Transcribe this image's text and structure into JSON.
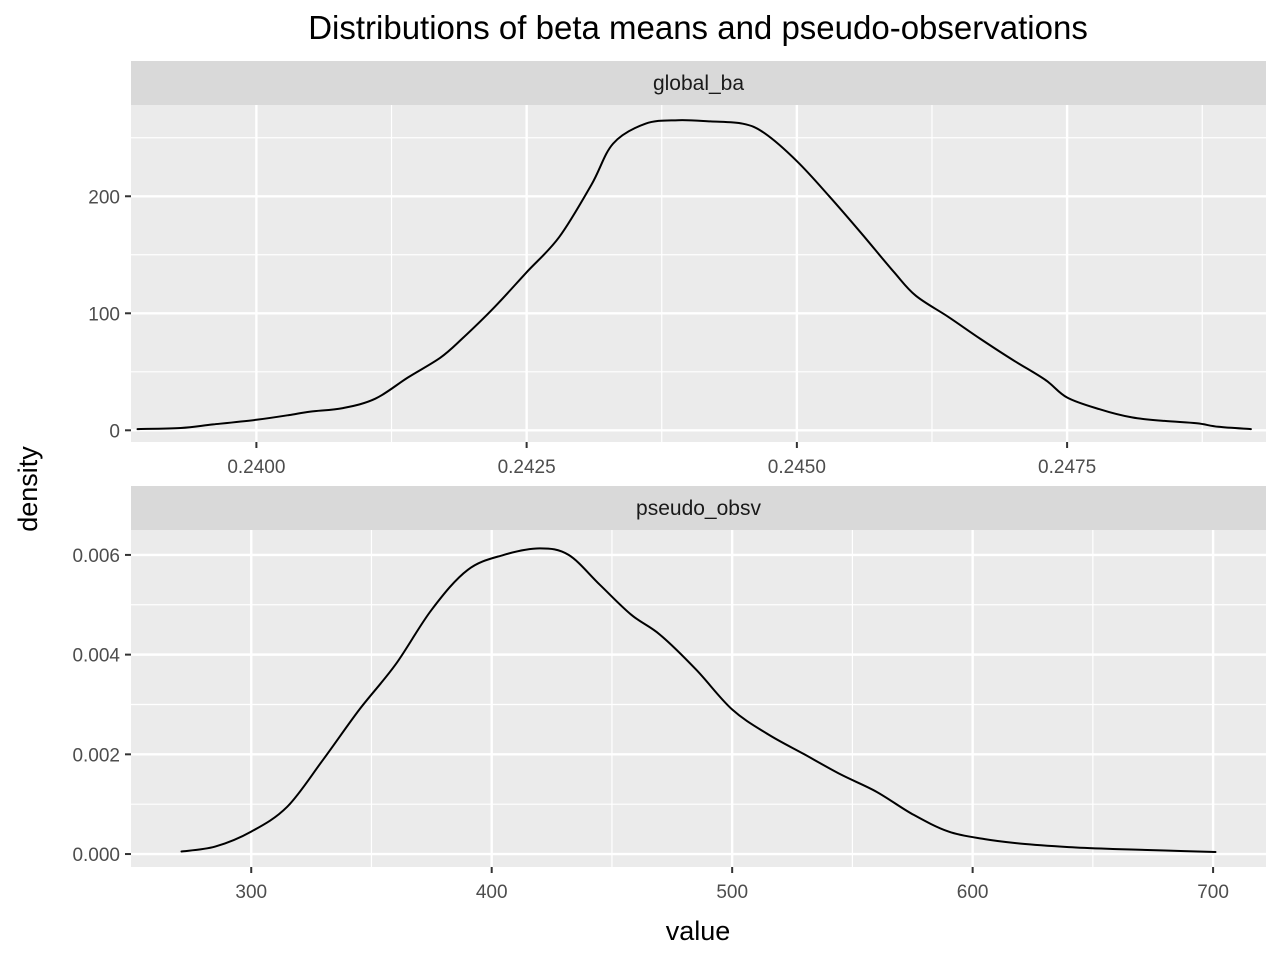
{
  "chart_data": {
    "type": "line",
    "title": "Distributions of beta means and pseudo-observations",
    "xlabel": "value",
    "ylabel": "density",
    "grid": true,
    "legend": "none",
    "facets": [
      {
        "strip_label": "global_ba",
        "xlim": [
          0.23884,
          0.24934
        ],
        "ylim": [
          -10,
          278
        ],
        "x_ticks": [
          0.24,
          0.2425,
          0.245,
          0.2475
        ],
        "x_tick_labels": [
          "0.2400",
          "0.2425",
          "0.2450",
          "0.2475"
        ],
        "y_ticks": [
          0,
          100,
          200
        ],
        "y_tick_labels": [
          "0",
          "100",
          "200"
        ],
        "x": [
          0.2389,
          0.2393,
          0.2396,
          0.24,
          0.2403,
          0.2405,
          0.2408,
          0.2411,
          0.2414,
          0.2417,
          0.2419,
          0.2422,
          0.2425,
          0.2428,
          0.2431,
          0.2433,
          0.2436,
          0.2439,
          0.2442,
          0.2445,
          0.2447,
          0.245,
          0.2453,
          0.2456,
          0.2459,
          0.2461,
          0.2464,
          0.2467,
          0.247,
          0.2473,
          0.2475,
          0.2478,
          0.2481,
          0.2484,
          0.2487,
          0.2489,
          0.2492
        ],
        "y": [
          1,
          2,
          5,
          9,
          13,
          16,
          19,
          27,
          45,
          62,
          78,
          105,
          135,
          165,
          210,
          245,
          262,
          265,
          264,
          262,
          254,
          230,
          200,
          168,
          135,
          115,
          97,
          78,
          60,
          43,
          28,
          18,
          11,
          8,
          6,
          3,
          1
        ]
      },
      {
        "strip_label": "pseudo_obsv",
        "xlim": [
          250,
          722
        ],
        "ylim": [
          -0.00026,
          0.0065
        ],
        "x_ticks": [
          300,
          400,
          500,
          600,
          700
        ],
        "x_tick_labels": [
          "300",
          "400",
          "500",
          "600",
          "700"
        ],
        "y_ticks": [
          0,
          0.002,
          0.004,
          0.006
        ],
        "y_tick_labels": [
          "0.000",
          "0.002",
          "0.004",
          "0.006"
        ],
        "x": [
          271,
          285,
          300,
          315,
          330,
          345,
          360,
          375,
          390,
          405,
          420,
          432,
          445,
          458,
          470,
          485,
          500,
          515,
          530,
          545,
          560,
          575,
          590,
          605,
          620,
          640,
          660,
          680,
          701
        ],
        "y": [
          5e-05,
          0.00015,
          0.00045,
          0.00095,
          0.0019,
          0.0029,
          0.0038,
          0.0049,
          0.0057,
          0.006,
          0.00613,
          0.006,
          0.0054,
          0.0048,
          0.0044,
          0.0037,
          0.0029,
          0.0024,
          0.002,
          0.0016,
          0.00125,
          0.0008,
          0.00045,
          0.0003,
          0.00021,
          0.00014,
          0.0001,
          7e-05,
          4e-05
        ]
      }
    ]
  }
}
